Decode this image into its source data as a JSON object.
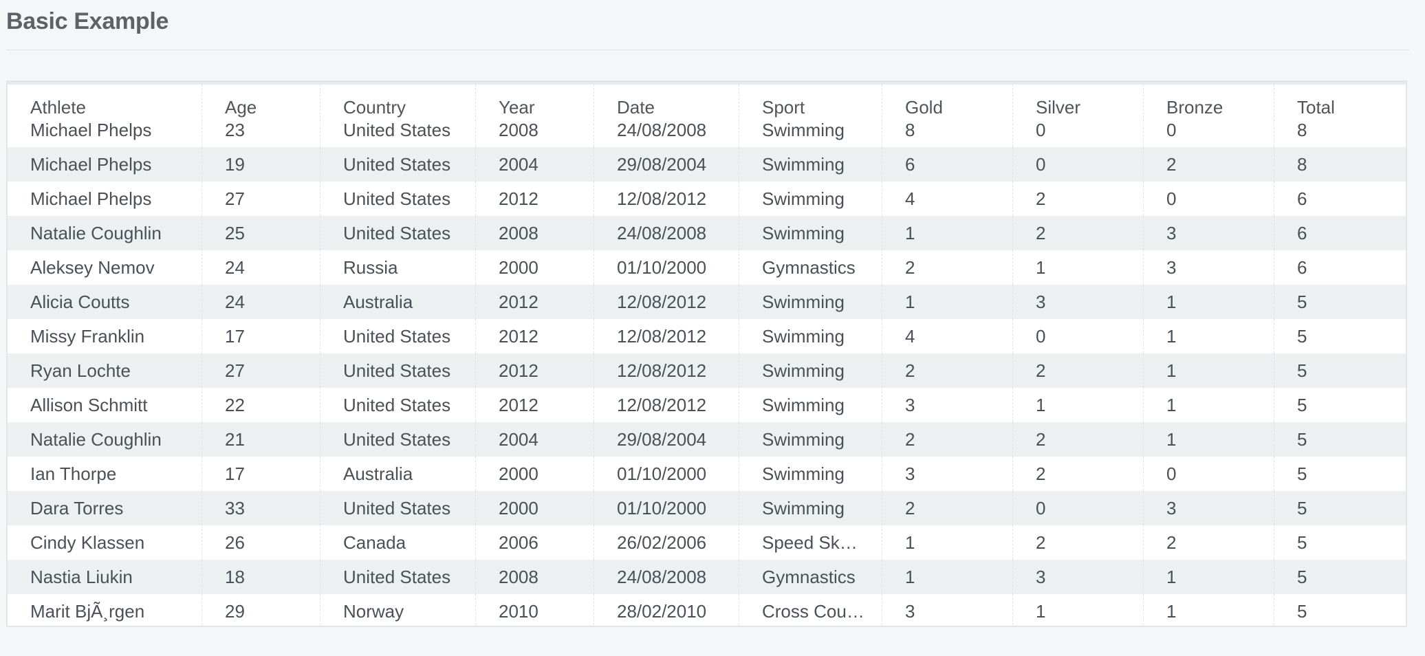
{
  "page": {
    "title": "Basic Example"
  },
  "grid": {
    "columns": [
      {
        "key": "athlete",
        "label": "Athlete"
      },
      {
        "key": "age",
        "label": "Age"
      },
      {
        "key": "country",
        "label": "Country"
      },
      {
        "key": "year",
        "label": "Year"
      },
      {
        "key": "date",
        "label": "Date"
      },
      {
        "key": "sport",
        "label": "Sport"
      },
      {
        "key": "gold",
        "label": "Gold"
      },
      {
        "key": "silver",
        "label": "Silver"
      },
      {
        "key": "bronze",
        "label": "Bronze"
      },
      {
        "key": "total",
        "label": "Total"
      }
    ],
    "rows": [
      {
        "athlete": "Michael Phelps",
        "age": "23",
        "country": "United States",
        "year": "2008",
        "date": "24/08/2008",
        "sport": "Swimming",
        "gold": "8",
        "silver": "0",
        "bronze": "0",
        "total": "8"
      },
      {
        "athlete": "Michael Phelps",
        "age": "19",
        "country": "United States",
        "year": "2004",
        "date": "29/08/2004",
        "sport": "Swimming",
        "gold": "6",
        "silver": "0",
        "bronze": "2",
        "total": "8"
      },
      {
        "athlete": "Michael Phelps",
        "age": "27",
        "country": "United States",
        "year": "2012",
        "date": "12/08/2012",
        "sport": "Swimming",
        "gold": "4",
        "silver": "2",
        "bronze": "0",
        "total": "6"
      },
      {
        "athlete": "Natalie Coughlin",
        "age": "25",
        "country": "United States",
        "year": "2008",
        "date": "24/08/2008",
        "sport": "Swimming",
        "gold": "1",
        "silver": "2",
        "bronze": "3",
        "total": "6"
      },
      {
        "athlete": "Aleksey Nemov",
        "age": "24",
        "country": "Russia",
        "year": "2000",
        "date": "01/10/2000",
        "sport": "Gymnastics",
        "gold": "2",
        "silver": "1",
        "bronze": "3",
        "total": "6"
      },
      {
        "athlete": "Alicia Coutts",
        "age": "24",
        "country": "Australia",
        "year": "2012",
        "date": "12/08/2012",
        "sport": "Swimming",
        "gold": "1",
        "silver": "3",
        "bronze": "1",
        "total": "5"
      },
      {
        "athlete": "Missy Franklin",
        "age": "17",
        "country": "United States",
        "year": "2012",
        "date": "12/08/2012",
        "sport": "Swimming",
        "gold": "4",
        "silver": "0",
        "bronze": "1",
        "total": "5"
      },
      {
        "athlete": "Ryan Lochte",
        "age": "27",
        "country": "United States",
        "year": "2012",
        "date": "12/08/2012",
        "sport": "Swimming",
        "gold": "2",
        "silver": "2",
        "bronze": "1",
        "total": "5"
      },
      {
        "athlete": "Allison Schmitt",
        "age": "22",
        "country": "United States",
        "year": "2012",
        "date": "12/08/2012",
        "sport": "Swimming",
        "gold": "3",
        "silver": "1",
        "bronze": "1",
        "total": "5"
      },
      {
        "athlete": "Natalie Coughlin",
        "age": "21",
        "country": "United States",
        "year": "2004",
        "date": "29/08/2004",
        "sport": "Swimming",
        "gold": "2",
        "silver": "2",
        "bronze": "1",
        "total": "5"
      },
      {
        "athlete": "Ian Thorpe",
        "age": "17",
        "country": "Australia",
        "year": "2000",
        "date": "01/10/2000",
        "sport": "Swimming",
        "gold": "3",
        "silver": "2",
        "bronze": "0",
        "total": "5"
      },
      {
        "athlete": "Dara Torres",
        "age": "33",
        "country": "United States",
        "year": "2000",
        "date": "01/10/2000",
        "sport": "Swimming",
        "gold": "2",
        "silver": "0",
        "bronze": "3",
        "total": "5"
      },
      {
        "athlete": "Cindy Klassen",
        "age": "26",
        "country": "Canada",
        "year": "2006",
        "date": "26/02/2006",
        "sport": "Speed Skating",
        "gold": "1",
        "silver": "2",
        "bronze": "2",
        "total": "5"
      },
      {
        "athlete": "Nastia Liukin",
        "age": "18",
        "country": "United States",
        "year": "2008",
        "date": "24/08/2008",
        "sport": "Gymnastics",
        "gold": "1",
        "silver": "3",
        "bronze": "1",
        "total": "5"
      },
      {
        "athlete": "Marit BjÃ¸rgen",
        "age": "29",
        "country": "Norway",
        "year": "2010",
        "date": "28/02/2010",
        "sport": "Cross Country Skiing",
        "gold": "3",
        "silver": "1",
        "bronze": "1",
        "total": "5"
      }
    ]
  }
}
